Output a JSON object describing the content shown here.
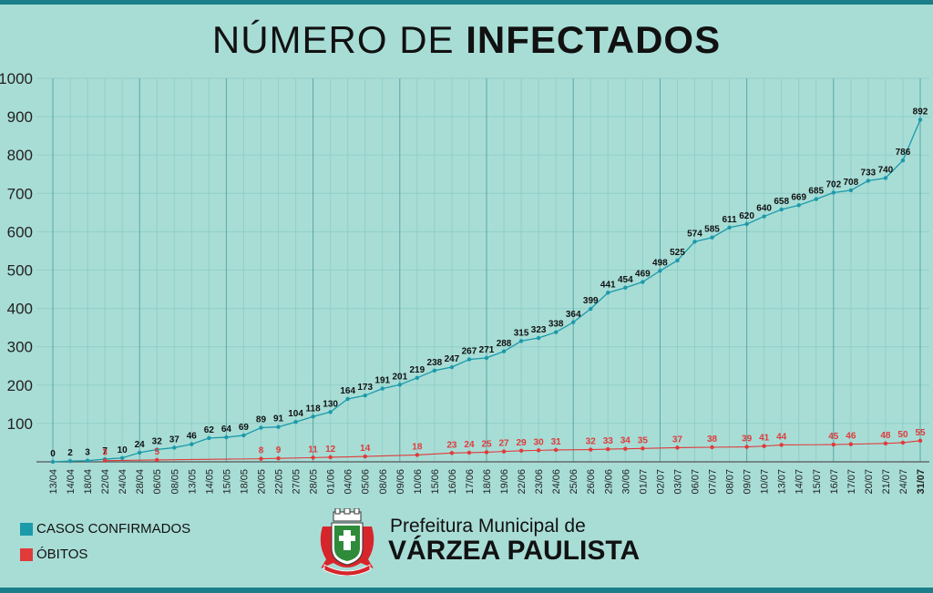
{
  "header": {
    "title_light": "NÚMERO DE",
    "title_bold": "INFECTADOS"
  },
  "legend": {
    "items": [
      {
        "label": "CASOS CONFIRMADOS",
        "color": "#1b9aaa"
      },
      {
        "label": "ÓBITOS",
        "color": "#e03a3a"
      }
    ]
  },
  "brand": {
    "line1": "Prefeitura Municipal de",
    "line2": "VÁRZEA PAULISTA",
    "seal_icon": "municipal-coat-of-arms-icon"
  },
  "colors": {
    "cases": "#1b9aaa",
    "deaths": "#e03a3a",
    "background": "#a8ddd6",
    "band": "#1a7f8a"
  },
  "chart_data": {
    "type": "line",
    "ylim": [
      0,
      1000
    ],
    "yticks": [
      1000,
      900,
      800,
      700,
      600,
      500,
      400,
      300,
      200,
      100
    ],
    "grid": true,
    "categories": [
      "13/04",
      "14/04",
      "18/04",
      "22/04",
      "24/04",
      "28/04",
      "06/05",
      "08/05",
      "13/05",
      "14/05",
      "15/05",
      "18/05",
      "20/05",
      "22/05",
      "27/05",
      "28/05",
      "01/06",
      "04/06",
      "05/06",
      "08/06",
      "09/06",
      "10/06",
      "15/06",
      "16/06",
      "17/06",
      "18/06",
      "19/06",
      "22/06",
      "23/06",
      "24/06",
      "25/06",
      "26/06",
      "29/06",
      "30/06",
      "01/07",
      "02/07",
      "03/07",
      "06/07",
      "07/07",
      "08/07",
      "09/07",
      "10/07",
      "13/07",
      "14/07",
      "15/07",
      "16/07",
      "17/07",
      "20/07",
      "21/07",
      "24/07",
      "31/07"
    ],
    "series": [
      {
        "name": "CASOS CONFIRMADOS",
        "values": [
          0,
          2,
          3,
          7,
          10,
          24,
          32,
          37,
          46,
          62,
          64,
          69,
          89,
          91,
          104,
          118,
          130,
          164,
          173,
          191,
          201,
          219,
          238,
          247,
          267,
          271,
          288,
          315,
          323,
          338,
          364,
          399,
          441,
          454,
          469,
          498,
          525,
          574,
          585,
          611,
          620,
          640,
          658,
          669,
          685,
          702,
          708,
          733,
          740,
          786,
          892
        ]
      },
      {
        "name": "ÓBITOS",
        "values": [
          null,
          null,
          null,
          3,
          null,
          null,
          5,
          null,
          null,
          null,
          null,
          null,
          8,
          9,
          null,
          11,
          12,
          null,
          14,
          null,
          null,
          18,
          null,
          23,
          24,
          25,
          27,
          29,
          30,
          31,
          null,
          32,
          33,
          34,
          35,
          null,
          37,
          null,
          38,
          null,
          39,
          41,
          44,
          null,
          null,
          45,
          46,
          null,
          48,
          50,
          55
        ]
      }
    ]
  }
}
